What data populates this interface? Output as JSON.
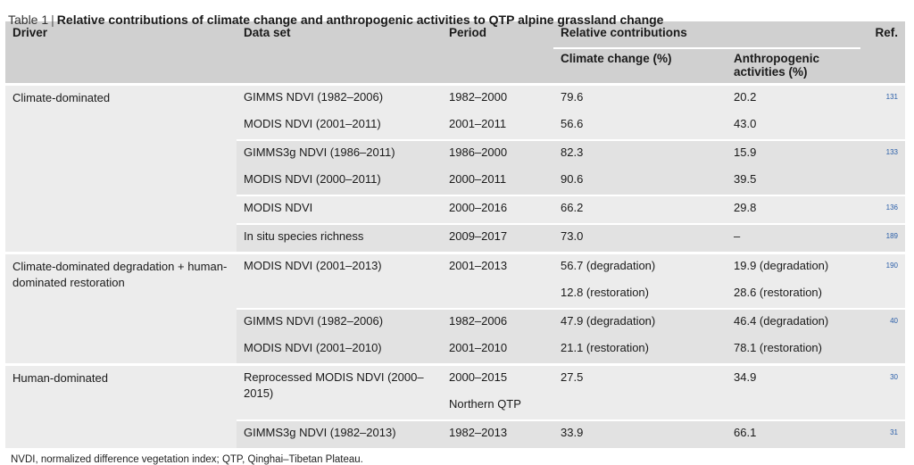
{
  "caption": {
    "prefix": "Table 1",
    "separator": "|",
    "title": "Relative contributions of climate change and anthropogenic activities to QTP alpine grassland change"
  },
  "headers": {
    "driver": "Driver",
    "dataset": "Data set",
    "period": "Period",
    "relative": "Relative contributions",
    "ref": "Ref.",
    "climate": "Climate change (%)",
    "anthro": "Anthropogenic activities (%)"
  },
  "drivers": {
    "climate": "Climate-dominated",
    "mixed": "Climate-dominated degradation + human-dominated restoration",
    "human": "Human-dominated"
  },
  "rows": [
    {
      "dataset": "GIMMS NDVI (1982–2006)",
      "period": "1982–2000",
      "climate": "79.6",
      "anthro": "20.2",
      "ref": "131"
    },
    {
      "dataset": "MODIS NDVI (2001–2011)",
      "period": "2001–2011",
      "climate": "56.6",
      "anthro": "43.0",
      "ref": ""
    },
    {
      "dataset": "GIMMS3g NDVI (1986–2011)",
      "period": "1986–2000",
      "climate": "82.3",
      "anthro": "15.9",
      "ref": "133"
    },
    {
      "dataset": "MODIS NDVI (2000–2011)",
      "period": "2000–2011",
      "climate": "90.6",
      "anthro": "39.5",
      "ref": ""
    },
    {
      "dataset": "MODIS NDVI",
      "period": "2000–2016",
      "climate": "66.2",
      "anthro": "29.8",
      "ref": "136"
    },
    {
      "dataset": "In situ species richness",
      "period": "2009–2017",
      "climate": "73.0",
      "anthro": "–",
      "ref": "189"
    },
    {
      "dataset": "MODIS NDVI (2001–2013)",
      "period": "2001–2013",
      "climate": "56.7 (degradation)",
      "anthro": "19.9 (degradation)",
      "ref": "190"
    },
    {
      "dataset": "",
      "period": "",
      "climate": "12.8 (restoration)",
      "anthro": "28.6 (restoration)",
      "ref": ""
    },
    {
      "dataset": "GIMMS NDVI (1982–2006)",
      "period": "1982–2006",
      "climate": "47.9 (degradation)",
      "anthro": "46.4 (degradation)",
      "ref": "40"
    },
    {
      "dataset": "MODIS NDVI (2001–2010)",
      "period": "2001–2010",
      "climate": "21.1 (restoration)",
      "anthro": "78.1 (restoration)",
      "ref": ""
    },
    {
      "dataset": "Reprocessed MODIS NDVI (2000–2015)",
      "period": "2000–2015",
      "climate": "27.5",
      "anthro": "34.9",
      "ref": "30"
    },
    {
      "dataset": "",
      "period": "Northern QTP",
      "climate": "",
      "anthro": "",
      "ref": ""
    },
    {
      "dataset": "GIMMS3g NDVI (1982–2013)",
      "period": "1982–2013",
      "climate": "33.9",
      "anthro": "66.1",
      "ref": "31"
    }
  ],
  "footnote": "NVDI, normalized difference vegetation index; QTP, Qinghai–Tibetan Plateau."
}
